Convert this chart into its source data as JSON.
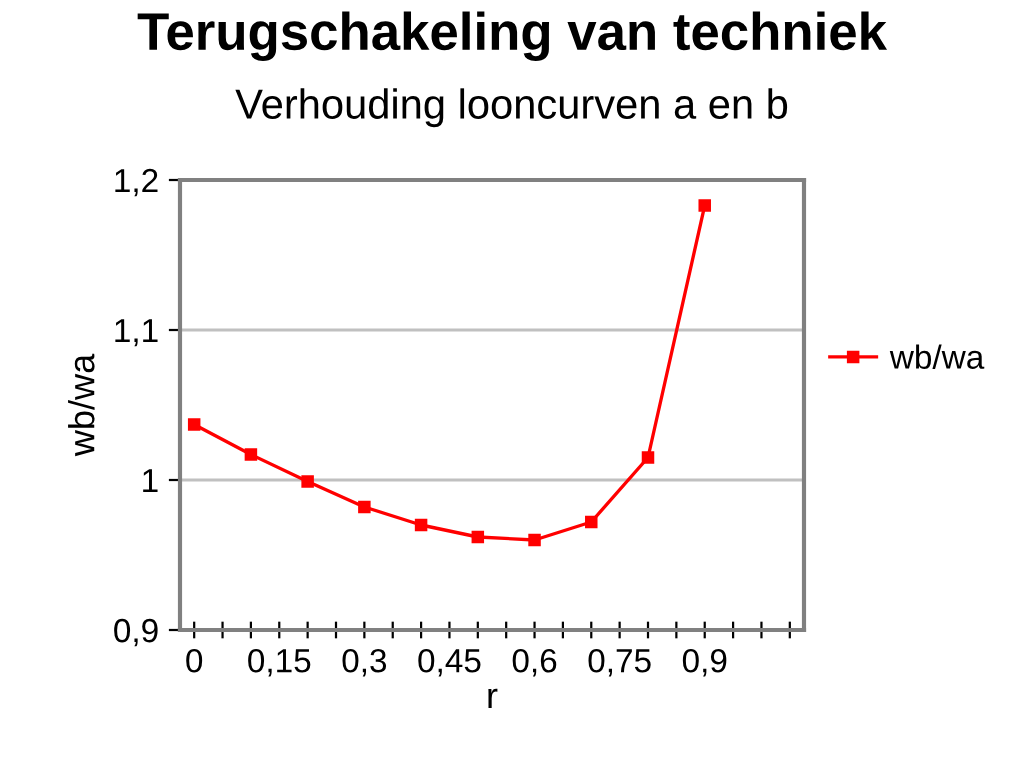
{
  "chart_data": {
    "type": "line",
    "title": "Terugschakeling van techniek",
    "subtitle": "Verhouding looncurven a en b",
    "xlabel": "r",
    "ylabel": "wb/wa",
    "x": [
      0,
      0.1,
      0.2,
      0.3,
      0.4,
      0.5,
      0.6,
      0.7,
      0.8,
      0.9
    ],
    "series": [
      {
        "name": "wb/wa",
        "color": "#ff0000",
        "values": [
          1.037,
          1.017,
          0.999,
          0.982,
          0.97,
          0.962,
          0.96,
          0.972,
          1.015,
          1.183
        ]
      }
    ],
    "xlim": [
      -0.025,
      1.075
    ],
    "xticks": [
      {
        "value": 0,
        "label": "0"
      },
      {
        "value": 0.05,
        "label": null
      },
      {
        "value": 0.1,
        "label": null
      },
      {
        "value": 0.15,
        "label": "0,15"
      },
      {
        "value": 0.2,
        "label": null
      },
      {
        "value": 0.25,
        "label": null
      },
      {
        "value": 0.3,
        "label": "0,3"
      },
      {
        "value": 0.35,
        "label": null
      },
      {
        "value": 0.4,
        "label": null
      },
      {
        "value": 0.45,
        "label": "0,45"
      },
      {
        "value": 0.5,
        "label": null
      },
      {
        "value": 0.55,
        "label": null
      },
      {
        "value": 0.6,
        "label": "0,6"
      },
      {
        "value": 0.65,
        "label": null
      },
      {
        "value": 0.7,
        "label": null
      },
      {
        "value": 0.75,
        "label": "0,75"
      },
      {
        "value": 0.8,
        "label": null
      },
      {
        "value": 0.85,
        "label": null
      },
      {
        "value": 0.9,
        "label": "0,9"
      },
      {
        "value": 0.95,
        "label": null
      },
      {
        "value": 1.0,
        "label": null
      },
      {
        "value": 1.05,
        "label": null
      }
    ],
    "ylim": [
      0.9,
      1.2
    ],
    "yticks": [
      {
        "value": 0.9,
        "label": "0,9"
      },
      {
        "value": 1.0,
        "label": "1"
      },
      {
        "value": 1.1,
        "label": "1,1"
      },
      {
        "value": 1.2,
        "label": "1,2"
      }
    ],
    "grid": "y",
    "legend": "right",
    "marker": "square",
    "line_style": "solid"
  }
}
